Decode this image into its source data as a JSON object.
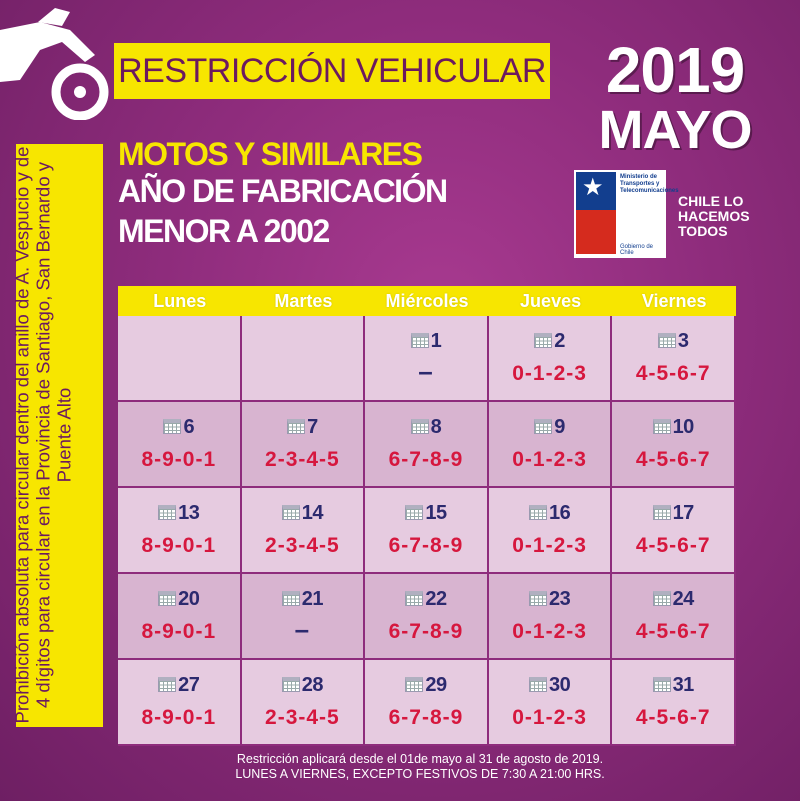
{
  "banner": {
    "title": "RESTRICCIÓN VEHICULAR"
  },
  "date": {
    "year": "2019",
    "month": "MAYO"
  },
  "headline": {
    "line1": "MOTOS Y SIMILARES",
    "line2": "AÑO DE FABRICACIÓN",
    "line3": "MENOR A  2002"
  },
  "logo": {
    "ministry": "Ministerio de Transportes y Telecomunicaciones",
    "government": "Gobierno de Chile",
    "slogan": "CHILE LO HACEMOS TODOS"
  },
  "sidebar": {
    "text": "Prohibición absoluta para circular dentro del anillo de A. Vespucio y de 4 dígitos para circular en la Provincia de Santiago, San Bernardo y Puente Alto"
  },
  "calendar": {
    "headers": [
      "Lunes",
      "Martes",
      "Miércoles",
      "Jueves",
      "Viernes"
    ],
    "weeks": [
      [
        {
          "day": "",
          "digits": ""
        },
        {
          "day": "",
          "digits": ""
        },
        {
          "day": "1",
          "digits": "–"
        },
        {
          "day": "2",
          "digits": "0-1-2-3"
        },
        {
          "day": "3",
          "digits": "4-5-6-7"
        }
      ],
      [
        {
          "day": "6",
          "digits": "8-9-0-1"
        },
        {
          "day": "7",
          "digits": "2-3-4-5"
        },
        {
          "day": "8",
          "digits": "6-7-8-9"
        },
        {
          "day": "9",
          "digits": "0-1-2-3"
        },
        {
          "day": "10",
          "digits": "4-5-6-7"
        }
      ],
      [
        {
          "day": "13",
          "digits": "8-9-0-1"
        },
        {
          "day": "14",
          "digits": "2-3-4-5"
        },
        {
          "day": "15",
          "digits": "6-7-8-9"
        },
        {
          "day": "16",
          "digits": "0-1-2-3"
        },
        {
          "day": "17",
          "digits": "4-5-6-7"
        }
      ],
      [
        {
          "day": "20",
          "digits": "8-9-0-1"
        },
        {
          "day": "21",
          "digits": "–"
        },
        {
          "day": "22",
          "digits": "6-7-8-9"
        },
        {
          "day": "23",
          "digits": "0-1-2-3"
        },
        {
          "day": "24",
          "digits": "4-5-6-7"
        }
      ],
      [
        {
          "day": "27",
          "digits": "8-9-0-1"
        },
        {
          "day": "28",
          "digits": "2-3-4-5"
        },
        {
          "day": "29",
          "digits": "6-7-8-9"
        },
        {
          "day": "30",
          "digits": "0-1-2-3"
        },
        {
          "day": "31",
          "digits": "4-5-6-7"
        }
      ]
    ]
  },
  "footer": {
    "line1": "Restricción aplicará desde el 01de mayo al 31 de agosto de 2019.",
    "line2": "LUNES A VIERNES, EXCEPTO FESTIVOS DE 7:30 A 21:00 HRS."
  },
  "colors": {
    "accent": "#f7e600",
    "background": "#8e2c7c",
    "digits": "#d6173e",
    "daynum": "#2c2a6e"
  }
}
